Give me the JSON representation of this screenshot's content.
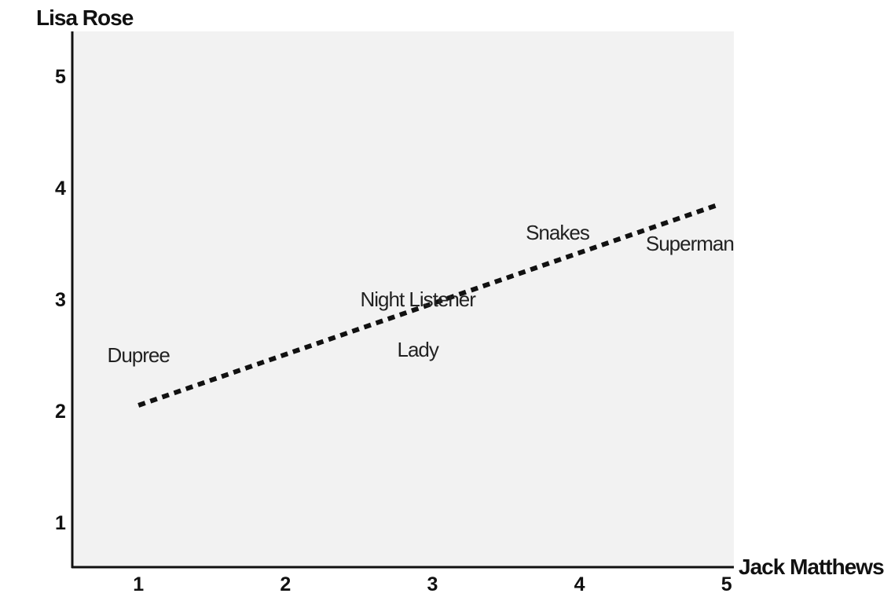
{
  "chart_data": {
    "type": "scatter",
    "xlabel": "Jack Matthews",
    "ylabel": "Lisa Rose",
    "xlim": [
      0.55,
      5.05
    ],
    "ylim": [
      0.6,
      5.4
    ],
    "x_ticks": [
      1,
      2,
      3,
      4,
      5
    ],
    "y_ticks": [
      1,
      2,
      3,
      4,
      5
    ],
    "grid": false,
    "plot_background": "#f2f2f2",
    "axis_color": "#111111",
    "points": [
      {
        "label": "Dupree",
        "x": 1.0,
        "y": 2.5
      },
      {
        "label": "Night Listener",
        "x": 2.9,
        "y": 3.0
      },
      {
        "label": "Lady",
        "x": 2.9,
        "y": 2.55
      },
      {
        "label": "Snakes",
        "x": 3.85,
        "y": 3.6
      },
      {
        "label": "Superman",
        "x": 4.75,
        "y": 3.5
      }
    ],
    "trend_line": {
      "x": [
        1.0,
        4.95
      ],
      "y": [
        2.05,
        3.85
      ],
      "style": "dotted"
    }
  }
}
